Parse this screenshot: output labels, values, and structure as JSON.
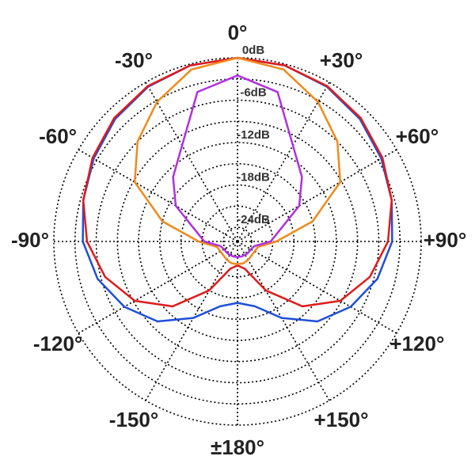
{
  "chart_data": {
    "type": "polar",
    "theta": [
      0,
      15,
      30,
      45,
      60,
      75,
      90,
      105,
      120,
      135,
      150,
      165,
      180,
      195,
      210,
      225,
      240,
      255,
      270,
      285,
      300,
      315,
      330,
      345
    ],
    "rlim": [
      -26,
      0
    ],
    "rgrid": [
      0,
      -3,
      -6,
      -9,
      -12,
      -15,
      -18,
      -21,
      -24
    ],
    "rticks": [
      {
        "value": 0,
        "label": "0dB"
      },
      {
        "value": -6,
        "label": "-6dB"
      },
      {
        "value": -12,
        "label": "-12dB"
      },
      {
        "value": -18,
        "label": "-18dB"
      },
      {
        "value": -24,
        "label": "-24dB"
      }
    ],
    "thetaticks": [
      {
        "value": 0,
        "label": "0°"
      },
      {
        "value": 30,
        "label": "+30°"
      },
      {
        "value": 60,
        "label": "+60°"
      },
      {
        "value": 90,
        "label": "+90°"
      },
      {
        "value": 120,
        "label": "+120°"
      },
      {
        "value": 150,
        "label": "+150°"
      },
      {
        "value": 180,
        "label": "±180°"
      },
      {
        "value": -150,
        "label": "-150°"
      },
      {
        "value": -120,
        "label": "-120°"
      },
      {
        "value": -90,
        "label": "-90°"
      },
      {
        "value": -60,
        "label": "-60°"
      },
      {
        "value": -30,
        "label": "-30°"
      }
    ],
    "series": [
      {
        "color": "#1f4fd8",
        "values": [
          0,
          -0.2,
          -0.7,
          -1.5,
          -2.5,
          -3.4,
          -4.1,
          -5.5,
          -7.5,
          -10,
          -13.5,
          -16.5,
          -17.3,
          -16.5,
          -13.5,
          -10,
          -7.5,
          -5.5,
          -4.1,
          -3.4,
          -2.5,
          -1.5,
          -0.7,
          -0.2
        ]
      },
      {
        "color": "#e01b1b",
        "values": [
          0,
          -0.2,
          -0.6,
          -1.3,
          -2.3,
          -3.4,
          -4.7,
          -6.6,
          -9.2,
          -13,
          -18,
          -22,
          -22.6,
          -22,
          -18,
          -13,
          -9.2,
          -6.6,
          -4.7,
          -3.4,
          -2.3,
          -1.3,
          -0.6,
          -0.2
        ]
      },
      {
        "color": "#f08a1c",
        "values": [
          0,
          -0.8,
          -3.2,
          -6,
          -9.2,
          -15,
          -20.5,
          -23,
          -23.2,
          -23.2,
          -23,
          -22.8,
          -22.8,
          -22.8,
          -23,
          -23.2,
          -23.2,
          -23,
          -20.5,
          -15,
          -9.2,
          -6,
          -3.2,
          -0.8
        ]
      },
      {
        "color": "#b030e0",
        "values": [
          -2.5,
          -4.1,
          -10.3,
          -13.1,
          -15.9,
          -19.8,
          -21.3,
          -23.5,
          -23.8,
          -23.8,
          -23.8,
          -23.8,
          -23.8,
          -23.8,
          -23.8,
          -23.8,
          -23.8,
          -23.5,
          -21.3,
          -19.8,
          -15.9,
          -13.1,
          -10.3,
          -4.1
        ]
      }
    ]
  }
}
